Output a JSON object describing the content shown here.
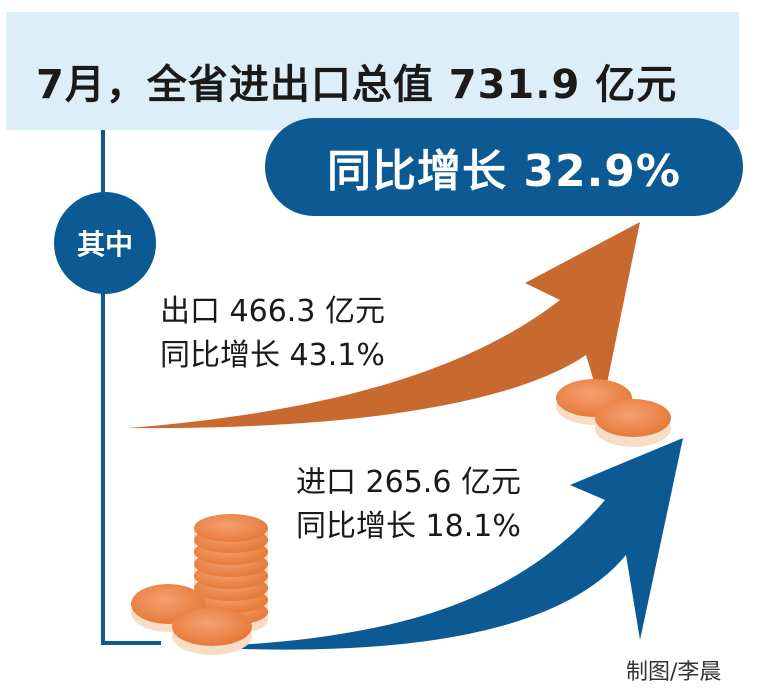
{
  "title": "7月，全省进出口总值 731.9 亿元",
  "growth": "同比增长 32.9%",
  "badge": "其中",
  "export": {
    "line1": "出口 466.3 亿元",
    "line2": "同比增长 43.1%"
  },
  "import": {
    "line1": "进口 265.6 亿元",
    "line2": "同比增长 18.1%"
  },
  "credit": "制图/李晨",
  "colors": {
    "band": "#ddeef8",
    "navy": "#0b5a94",
    "export_arrow": "#c8692f",
    "coin": "#ee8948",
    "coin_rim": "#f6ddc4"
  }
}
